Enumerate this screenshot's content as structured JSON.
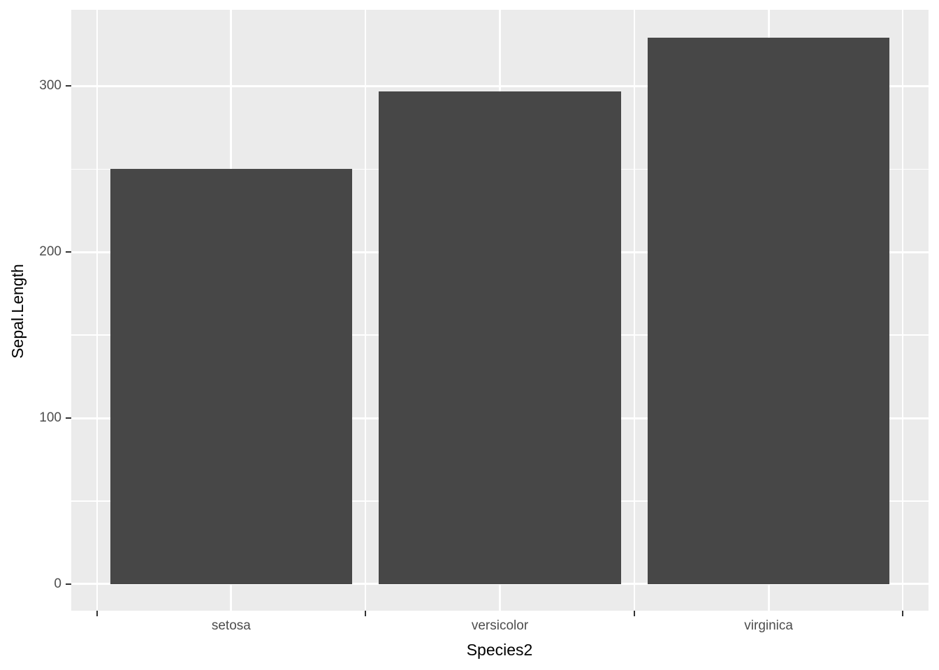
{
  "figure": {
    "background": "#FFFFFF"
  },
  "chart_data": {
    "type": "bar",
    "title": "",
    "categories": [
      "setosa",
      "versicolor",
      "virginica"
    ],
    "values": [
      250,
      297,
      329
    ],
    "xlabel": "Species2",
    "ylabel": "Sepal.Length",
    "xlim": [
      0.405,
      3.595
    ],
    "ylim": [
      -16,
      346
    ],
    "bar_centers": [
      1,
      2,
      3
    ],
    "bar_width": 0.9,
    "y_major_breaks": [
      0,
      100,
      200,
      300
    ],
    "y_tick_labels": [
      "0",
      "100",
      "200",
      "300"
    ],
    "y_minor_breaks": [
      50,
      150,
      250
    ],
    "x_tick_positions": [
      0.5,
      1.5,
      2.5,
      3.5
    ],
    "legend_position": "none",
    "grid": {
      "major": true,
      "minor": true
    },
    "colors": {
      "bar_fill": "#474747",
      "panel_background": "#EBEBEB",
      "grid_line": "#FFFFFF",
      "axis_text": "#4D4D4D",
      "axis_title": "#000000",
      "tick_mark": "#333333"
    }
  }
}
